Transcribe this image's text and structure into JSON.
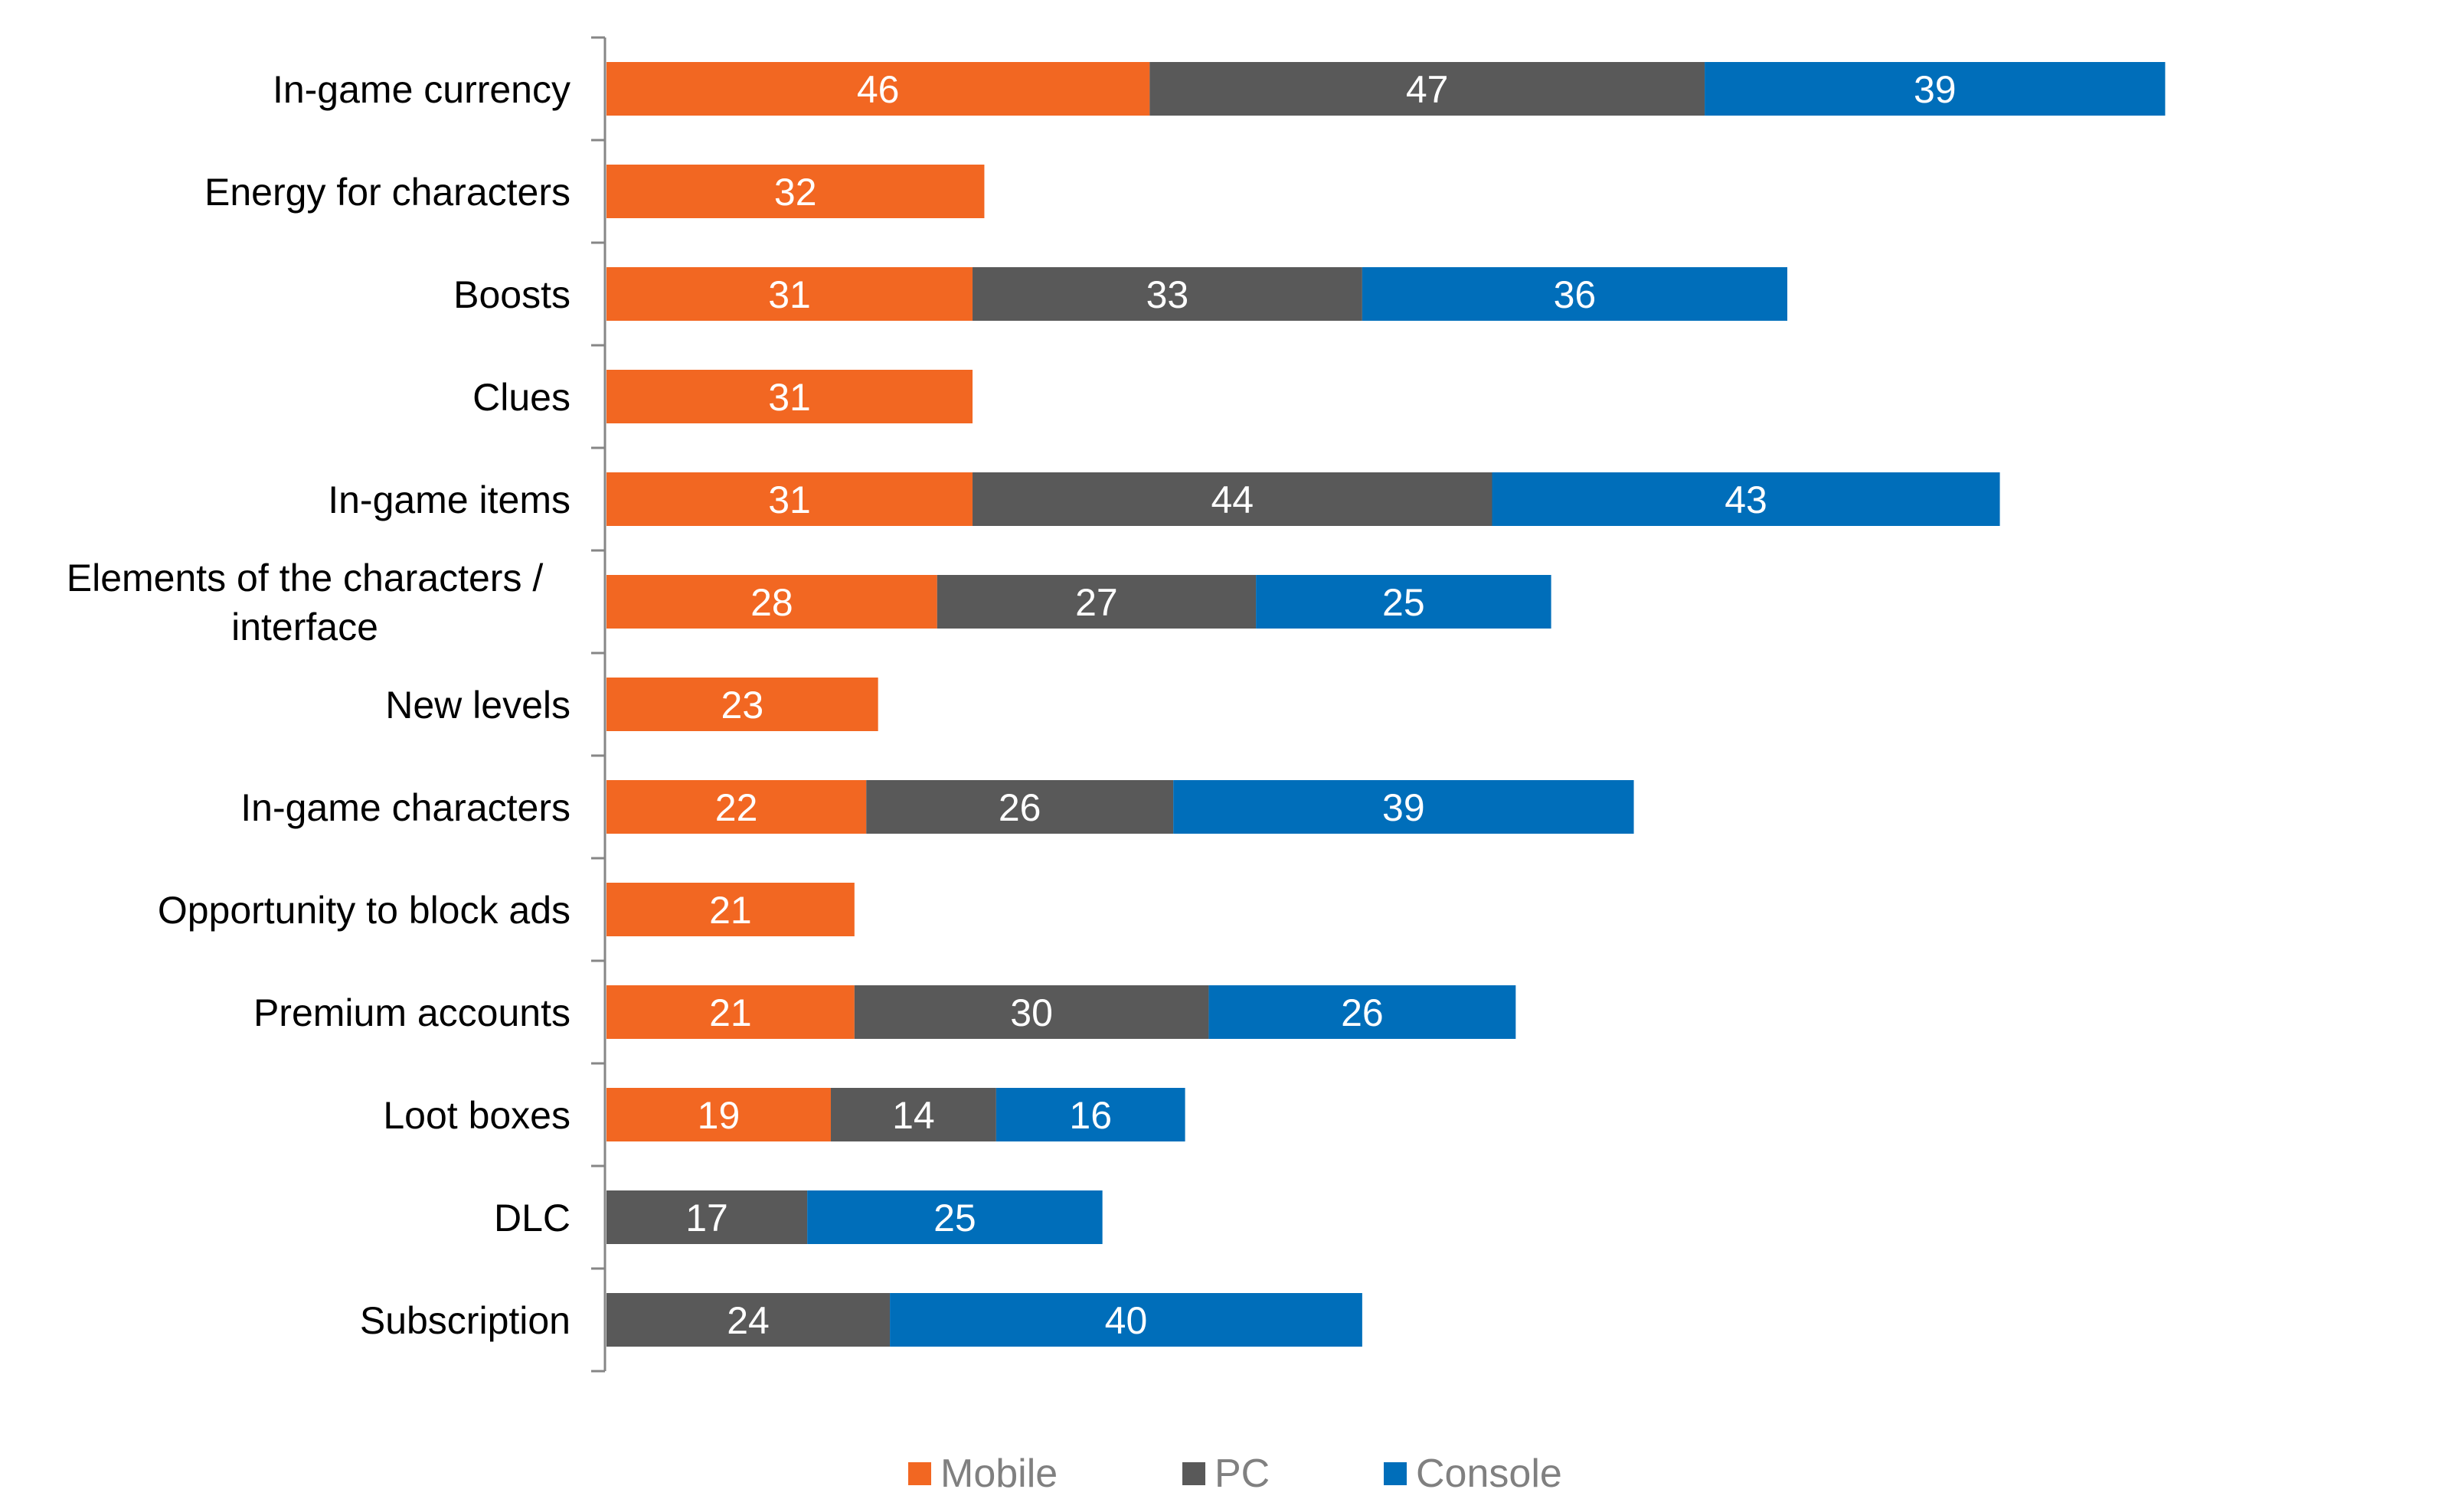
{
  "chart_data": {
    "type": "bar",
    "orientation": "horizontal",
    "stacked": true,
    "title": "",
    "xlabel": "",
    "ylabel": "",
    "grid": false,
    "legend_position": "bottom",
    "categories": [
      "In-game currency",
      "Energy for characters",
      "Boosts",
      "Clues",
      "In-game items",
      "Elements of the characters / interface",
      "New levels",
      "In-game characters",
      "Opportunity to block ads",
      "Premium accounts",
      "Loot boxes",
      "DLC",
      "Subscription"
    ],
    "series": [
      {
        "name": "Mobile",
        "color": "#F26722",
        "values": [
          46,
          32,
          31,
          31,
          31,
          28,
          23,
          22,
          21,
          21,
          19,
          null,
          null
        ]
      },
      {
        "name": "PC",
        "color": "#595959",
        "values": [
          47,
          null,
          33,
          null,
          44,
          27,
          null,
          26,
          null,
          30,
          14,
          17,
          24
        ]
      },
      {
        "name": "Console",
        "color": "#006EBA",
        "values": [
          39,
          null,
          36,
          null,
          43,
          25,
          null,
          39,
          null,
          26,
          16,
          25,
          40
        ]
      }
    ]
  },
  "legend": {
    "items": [
      {
        "label": "Mobile",
        "color": "#F26722"
      },
      {
        "label": "PC",
        "color": "#595959"
      },
      {
        "label": "Console",
        "color": "#006EBA"
      }
    ]
  }
}
